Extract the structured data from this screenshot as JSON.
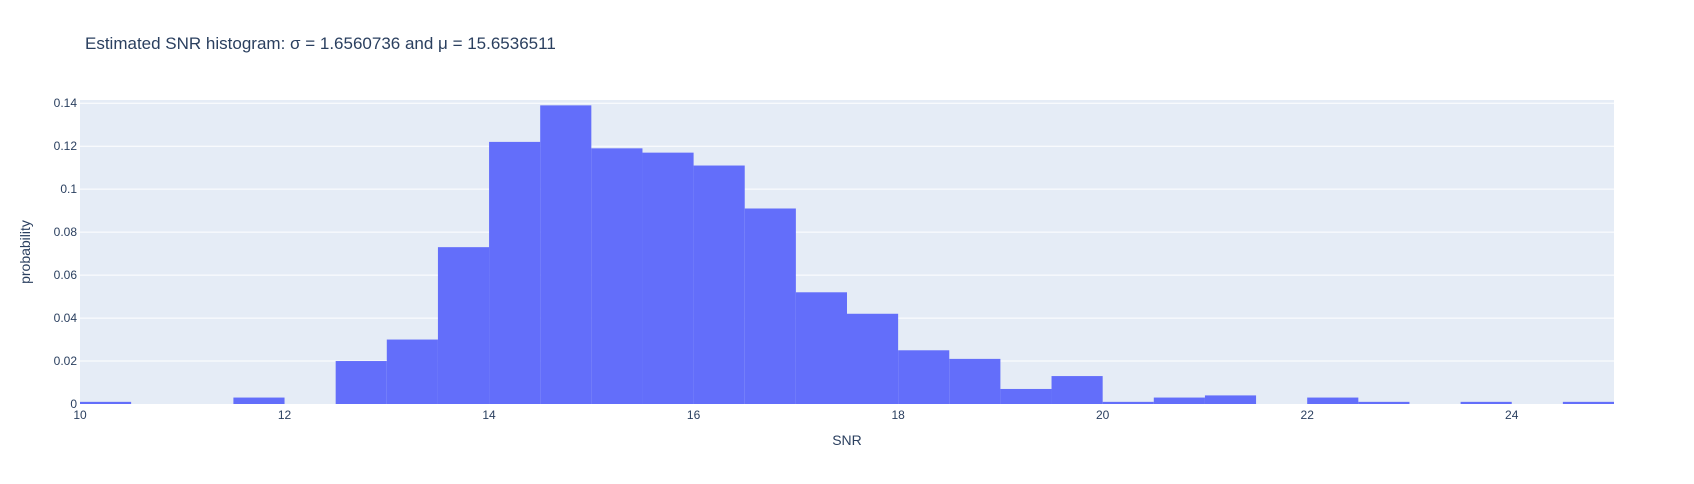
{
  "chart_data": {
    "type": "bar",
    "title": "Estimated SNR histogram: σ = 1.6560736 and μ = 15.6536511",
    "xlabel": "SNR",
    "ylabel": "probability",
    "bin_width": 0.5,
    "bin_starts": [
      10,
      10.5,
      11,
      11.5,
      12,
      12.5,
      13,
      13.5,
      14,
      14.5,
      15,
      15.5,
      16,
      16.5,
      17,
      17.5,
      18,
      18.5,
      19,
      19.5,
      20,
      20.5,
      21,
      21.5,
      22,
      22.5,
      23,
      23.5,
      24,
      24.5
    ],
    "values": [
      0.001,
      0,
      0,
      0.003,
      0,
      0.02,
      0.03,
      0.073,
      0.122,
      0.139,
      0.119,
      0.117,
      0.111,
      0.091,
      0.052,
      0.042,
      0.025,
      0.021,
      0.007,
      0.013,
      0.001,
      0.003,
      0.004,
      0,
      0.003,
      0.001,
      0,
      0.001,
      0,
      0.001
    ],
    "xlim": [
      10,
      25
    ],
    "ylim": [
      0,
      0.1415
    ],
    "x_ticks": [
      "10",
      "12",
      "14",
      "16",
      "18",
      "20",
      "22",
      "24"
    ],
    "y_ticks": [
      "0",
      "0.02",
      "0.04",
      "0.06",
      "0.08",
      "0.1",
      "0.12",
      "0.14"
    ],
    "grid": true,
    "bar_color": "#636efa",
    "plot_background": "#e5ecf6",
    "grid_color": "#ffffff",
    "text_color": "#2a3f5f"
  }
}
